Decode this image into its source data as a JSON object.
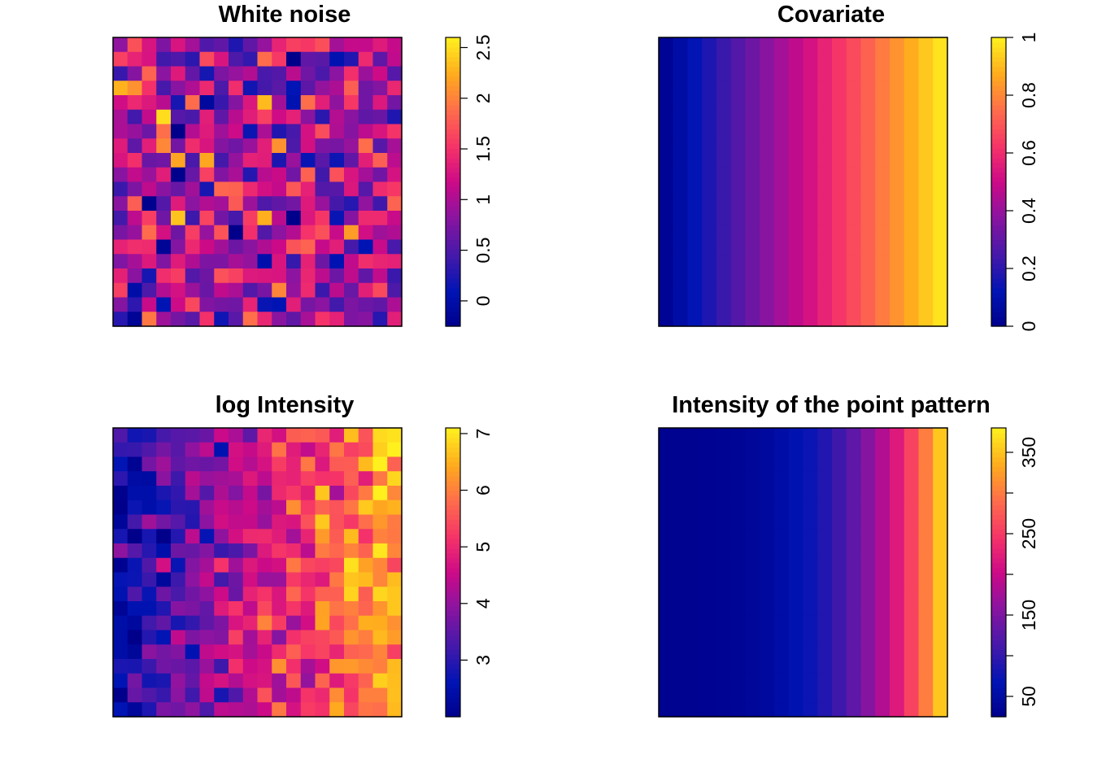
{
  "chart_data": [
    {
      "type": "heatmap",
      "title": "White noise",
      "nx": 20,
      "ny": 20,
      "zlim": [
        -0.25,
        2.6
      ],
      "colorbar_ticks": [
        0,
        0.5,
        1,
        1.5,
        2,
        2.5
      ],
      "colorbar_tick_labels": [
        "0",
        "0.5",
        "1",
        "1.5",
        "2",
        "2.5"
      ],
      "pattern": "noise",
      "seed": 11,
      "grid": false,
      "legend": "right"
    },
    {
      "type": "heatmap",
      "title": "Covariate",
      "nx": 20,
      "ny": 20,
      "zlim": [
        0,
        1
      ],
      "colorbar_ticks": [
        0,
        0.2,
        0.4,
        0.6,
        0.8,
        1
      ],
      "colorbar_tick_labels": [
        "0",
        "0.2",
        "0.4",
        "0.6",
        "0.8",
        "1"
      ],
      "pattern": "covariate",
      "grid": false,
      "legend": "right"
    },
    {
      "type": "heatmap",
      "title": "log Intensity",
      "nx": 20,
      "ny": 20,
      "zlim": [
        2.0,
        7.1
      ],
      "colorbar_ticks": [
        3,
        4,
        5,
        6,
        7
      ],
      "colorbar_tick_labels": [
        "3",
        "4",
        "5",
        "6",
        "7"
      ],
      "pattern": "log_intensity",
      "seed": 29,
      "grid": false,
      "legend": "right"
    },
    {
      "type": "heatmap",
      "title": "Intensity of the point pattern",
      "nx": 20,
      "ny": 20,
      "zlim": [
        25,
        380
      ],
      "colorbar_ticks": [
        50,
        100,
        150,
        200,
        250,
        300,
        350
      ],
      "colorbar_tick_labels": [
        "50",
        "",
        "150",
        "",
        "250",
        "",
        "350"
      ],
      "pattern": "intensity",
      "grid": false,
      "legend": "right"
    }
  ]
}
